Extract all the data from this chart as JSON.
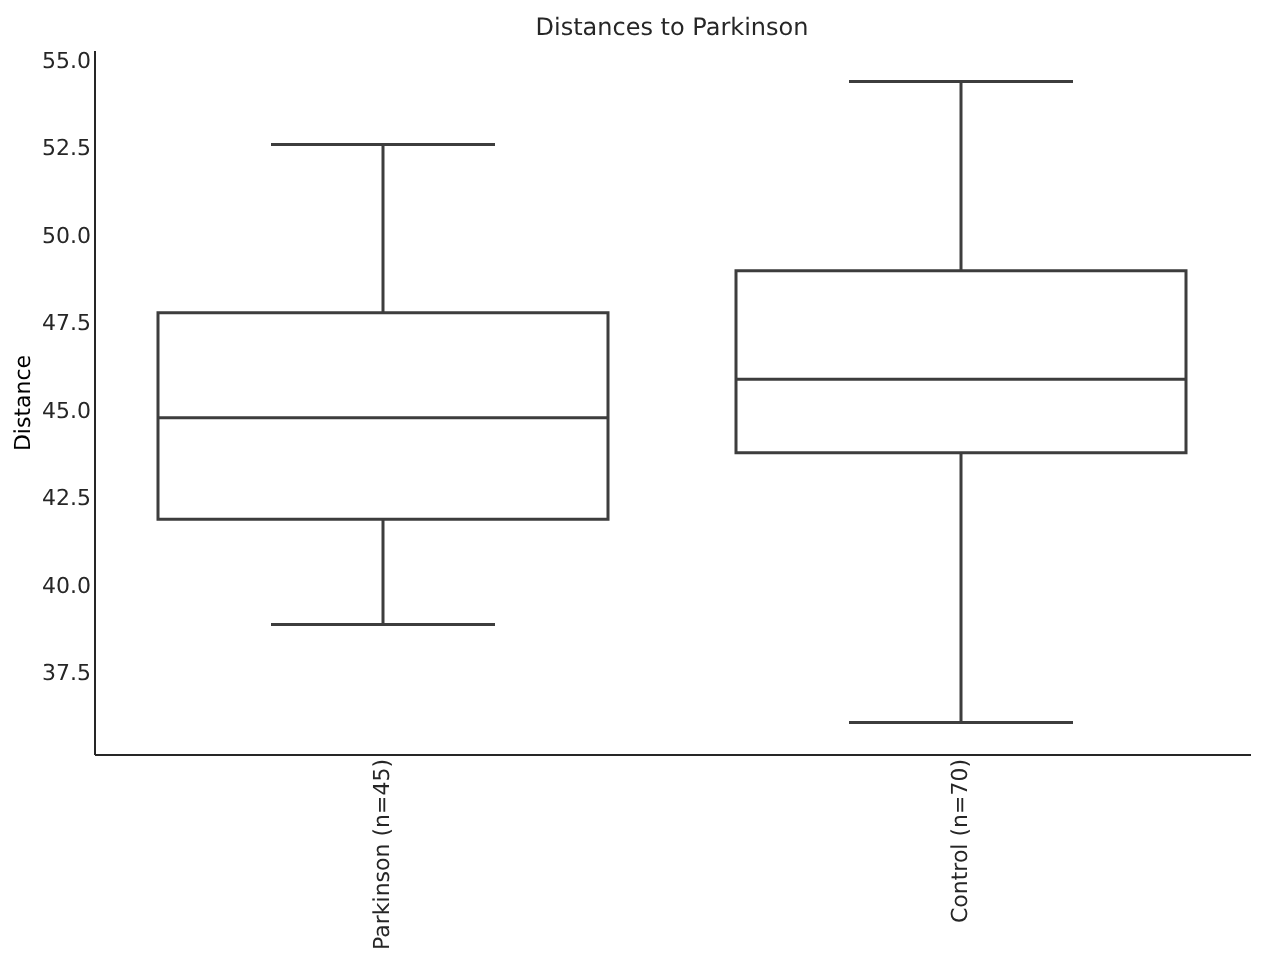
{
  "chart_data": {
    "type": "box",
    "title": "Distances to Parkinson",
    "ylabel": "Distance",
    "categories": [
      "Parkinson (n=45)",
      "Control (n=70)"
    ],
    "boxes": [
      {
        "low": 38.9,
        "q1": 41.9,
        "median": 44.8,
        "q3": 47.8,
        "high": 52.6
      },
      {
        "low": 36.1,
        "q1": 43.8,
        "median": 45.9,
        "q3": 49.0,
        "high": 54.4
      }
    ],
    "color": "#3d3d3d",
    "ylim": [
      35.2,
      55.3
    ],
    "yticks": [
      37.5,
      {
        "value": 40,
        "label": "40.0"
      },
      42.5,
      {
        "value": 45,
        "label": "45.0"
      },
      47.5,
      {
        "value": 50,
        "label": "50.0"
      },
      52.5,
      {
        "value": 55,
        "label": "55.0"
      }
    ],
    "grid": false
  }
}
